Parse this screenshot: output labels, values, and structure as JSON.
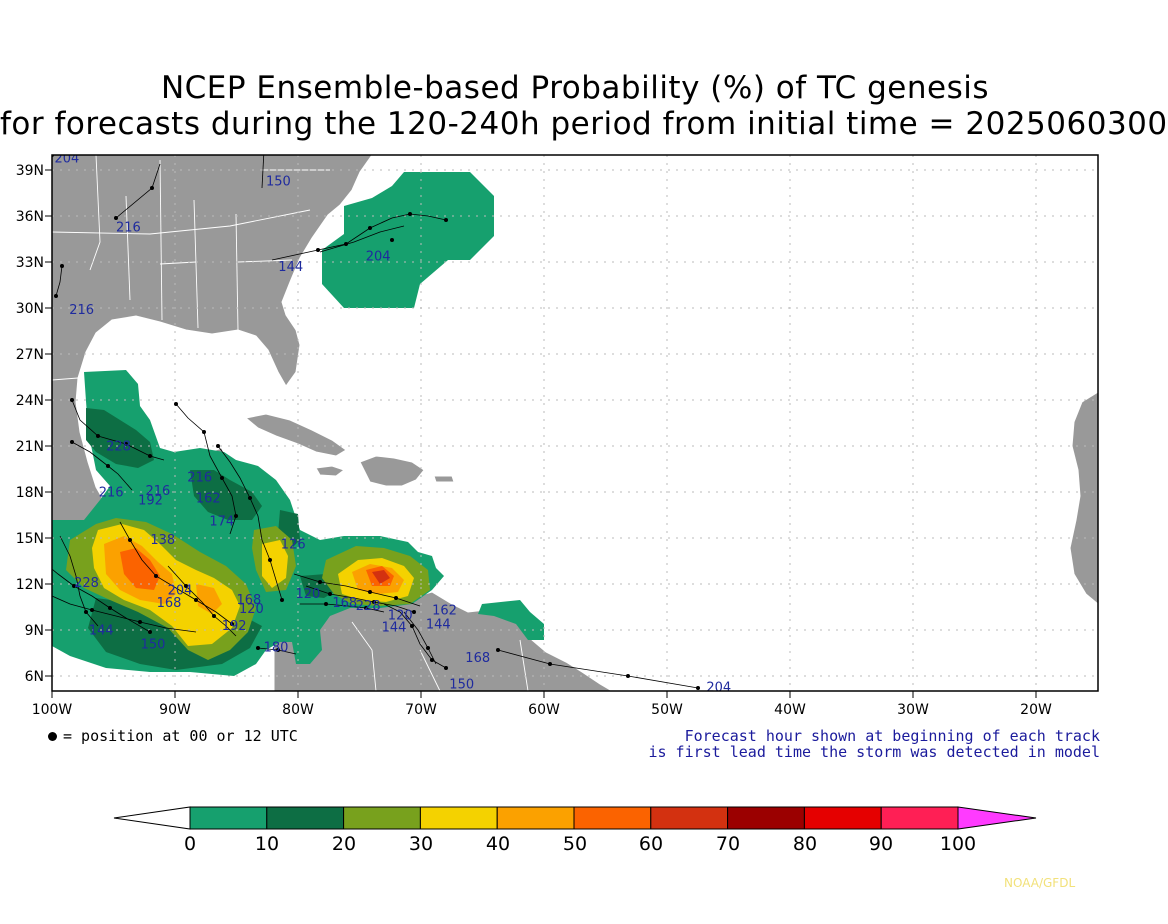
{
  "title": {
    "line1": "NCEP Ensemble-based Probability (%) of TC genesis",
    "line2": "for forecasts during the 120-240h period from initial time = 2025060300"
  },
  "lat_labels": [
    "39N",
    "36N",
    "33N",
    "30N",
    "27N",
    "24N",
    "21N",
    "18N",
    "15N",
    "12N",
    "9N",
    "6N"
  ],
  "lon_labels": [
    "100W",
    "90W",
    "80W",
    "70W",
    "60W",
    "50W",
    "40W",
    "30W",
    "20W"
  ],
  "legend_note": "= position at 00 or 12 UTC",
  "forecast_note": {
    "line1": "Forecast hour shown at beginning of each track",
    "line2": "is first lead time the storm was detected in model"
  },
  "colorbar": {
    "ticks": [
      "0",
      "10",
      "20",
      "30",
      "40",
      "50",
      "60",
      "70",
      "80",
      "90",
      "100"
    ],
    "colors": [
      "#ffffff",
      "#16a06e",
      "#0d6e44",
      "#78a11d",
      "#f4d200",
      "#fba100",
      "#fb6300",
      "#d33110",
      "#9b0000",
      "#e50000",
      "#ff1f55",
      "#ff3bff"
    ]
  },
  "track_labels": [
    {
      "text": "204",
      "lon": -99.8,
      "lat": 39.5
    },
    {
      "text": "150",
      "lon": -82.6,
      "lat": 38.0
    },
    {
      "text": "216",
      "lon": -94.8,
      "lat": 35.0
    },
    {
      "text": "144",
      "lon": -81.6,
      "lat": 32.4
    },
    {
      "text": "204",
      "lon": -74.5,
      "lat": 33.1
    },
    {
      "text": "216",
      "lon": -98.6,
      "lat": 29.6
    },
    {
      "text": "228",
      "lon": -95.6,
      "lat": 20.7
    },
    {
      "text": "216",
      "lon": -96.2,
      "lat": 17.7
    },
    {
      "text": "216",
      "lon": -92.4,
      "lat": 17.8
    },
    {
      "text": "192",
      "lon": -93.0,
      "lat": 17.2
    },
    {
      "text": "216",
      "lon": -89.0,
      "lat": 18.7
    },
    {
      "text": "162",
      "lon": -88.3,
      "lat": 17.3
    },
    {
      "text": "174",
      "lon": -87.2,
      "lat": 15.8
    },
    {
      "text": "138",
      "lon": -92.0,
      "lat": 14.6
    },
    {
      "text": "204",
      "lon": -90.6,
      "lat": 11.3
    },
    {
      "text": "168",
      "lon": -91.5,
      "lat": 10.5
    },
    {
      "text": "228",
      "lon": -98.2,
      "lat": 11.8
    },
    {
      "text": "144",
      "lon": -97.0,
      "lat": 8.7
    },
    {
      "text": "150",
      "lon": -92.8,
      "lat": 7.8
    },
    {
      "text": "168",
      "lon": -85.0,
      "lat": 10.7
    },
    {
      "text": "120",
      "lon": -84.8,
      "lat": 10.1
    },
    {
      "text": "192",
      "lon": -86.2,
      "lat": 9.0
    },
    {
      "text": "180",
      "lon": -82.8,
      "lat": 7.6
    },
    {
      "text": "126",
      "lon": -81.4,
      "lat": 14.3
    },
    {
      "text": "120",
      "lon": -80.2,
      "lat": 11.1
    },
    {
      "text": "168",
      "lon": -77.2,
      "lat": 10.5
    },
    {
      "text": "228",
      "lon": -75.3,
      "lat": 10.3
    },
    {
      "text": "120",
      "lon": -72.7,
      "lat": 9.7
    },
    {
      "text": "144",
      "lon": -73.2,
      "lat": 8.9
    },
    {
      "text": "144",
      "lon": -69.6,
      "lat": 9.1
    },
    {
      "text": "162",
      "lon": -69.1,
      "lat": 10.0
    },
    {
      "text": "168",
      "lon": -66.4,
      "lat": 6.9
    },
    {
      "text": "150",
      "lon": -67.7,
      "lat": 5.2
    },
    {
      "text": "204",
      "lon": -46.8,
      "lat": 5.0
    }
  ]
}
